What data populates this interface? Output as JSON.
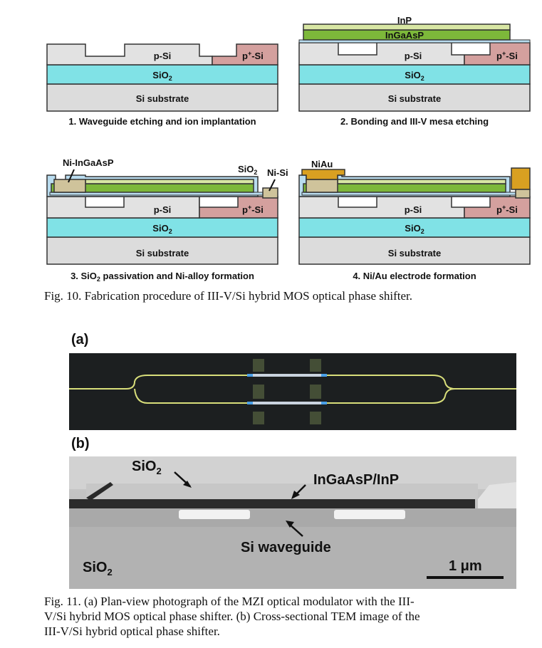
{
  "fig10": {
    "layers": {
      "p_si": "p-Si",
      "p_plus_si": "p",
      "p_plus_sup": "+",
      "p_plus_tail": "-Si",
      "sio2_main": "SiO",
      "sio2_sub": "2",
      "si_substrate": "Si substrate",
      "inp": "InP",
      "ingaasp": "InGaAsP",
      "ni_ingaasp": "Ni-InGaAsP",
      "ni_si": "Ni-Si",
      "niau": "NiAu"
    },
    "steps": [
      "1. Waveguide etching and ion implantation",
      "2. Bonding and III-V mesa etching",
      "3. SiO",
      "4. Ni/Au electrode formation"
    ],
    "step3_sub": "2",
    "step3_tail": " passivation and Ni-alloy formation",
    "caption": "Fig. 10. Fabrication procedure of III-V/Si hybrid MOS optical phase shifter."
  },
  "fig11": {
    "panel_a": "(a)",
    "panel_b": "(b)",
    "sio2_top": "SiO",
    "sio2_top_sub": "2",
    "ingaasp_inp": "InGaAsP/InP",
    "si_waveguide": "Si waveguide",
    "sio2_bottom": "SiO",
    "sio2_bottom_sub": "2",
    "scale": "1 μm",
    "caption_l1": "Fig. 11. (a) Plan-view photograph of the MZI optical modulator with the III-",
    "caption_l2": "V/Si hybrid MOS optical phase shifter. (b) Cross-sectional TEM image of the",
    "caption_l3": "III-V/Si hybrid optical phase shifter."
  },
  "colors": {
    "sio2": "#80e2e6",
    "substrate": "#dcdcdc",
    "psi": "#e2e2e2",
    "pplus": "#d4a09e",
    "ingaasp": "#7db83a",
    "inp": "#d8e6a4",
    "ni_alloy": "#cfc39b",
    "niau": "#d9a021",
    "passivation": "#b9dcef"
  }
}
